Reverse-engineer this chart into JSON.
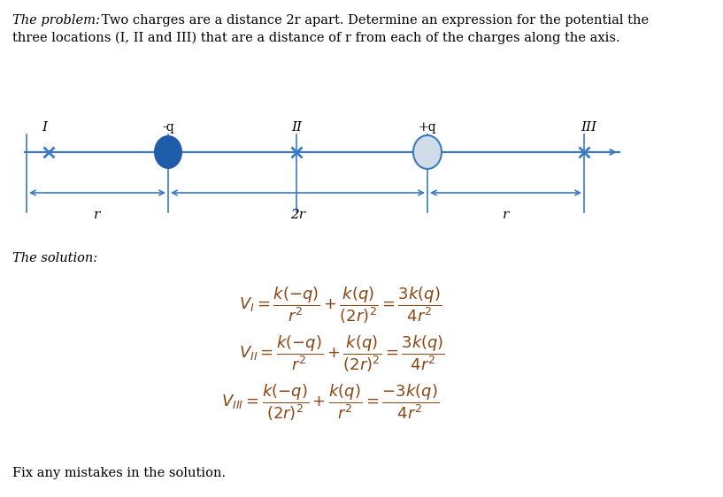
{
  "problem_italic": "The problem:",
  "problem_rest_line1": " Two charges are a distance 2r apart. Determine an expression for the potential the",
  "problem_line2": "three locations (I, II and III) that are a distance of r from each of the charges along the axis.",
  "solution_italic": "The solution:",
  "fix_text": "Fix any mistakes in the solution.",
  "label_I": "I",
  "label_II": "II",
  "label_III": "III",
  "label_neg_q": "-q",
  "label_pos_q": "+q",
  "label_r_left": "r",
  "label_2r": "2r",
  "label_r_right": "r",
  "axis_color": "#3A7AC4",
  "neg_charge_color": "#1F5DAB",
  "pos_charge_fill": "#D0DCE8",
  "pos_charge_edge": "#3A7AC4",
  "arrow_color": "#3A7AC4",
  "text_color": "#000000",
  "equation_color": "#8B4513",
  "bg_color": "#FFFFFF",
  "eq1": "$V_{I} = \\dfrac{k(-q)}{r^2} + \\dfrac{k(q)}{(2r)^2} = \\dfrac{3k(q)}{4r^2}$",
  "eq2": "$V_{II} = \\dfrac{k(-q)}{r^2} + \\dfrac{k(q)}{(2r)^2} = \\dfrac{3k(q)}{4r^2}$",
  "eq3": "$V_{III} = \\dfrac{k(-q)}{(2r)^2} + \\dfrac{k(q)}{r^2} = \\dfrac{-3k(q)}{4r^2}$"
}
